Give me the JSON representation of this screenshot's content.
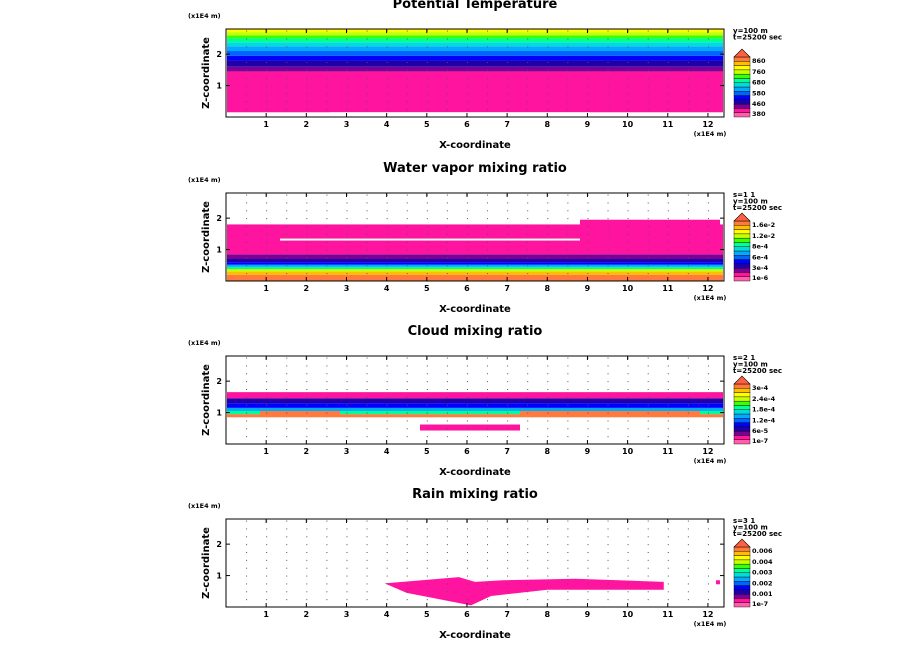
{
  "chart_data": [
    {
      "type": "heatmap",
      "title": "Potential Temperature",
      "xlabel": "X-coordinate",
      "ylabel": "Z-coordinate",
      "x_unit": "(x1E4 m)",
      "z_unit": "(x1E4 m)",
      "xlim": [
        0,
        12.4
      ],
      "ylim": [
        0,
        2.8
      ],
      "x_ticks": [
        "1",
        "2",
        "3",
        "4",
        "5",
        "6",
        "7",
        "8",
        "9",
        "10",
        "11",
        "12"
      ],
      "y_ticks": [
        "1",
        "2"
      ],
      "info": [
        "y=100 m",
        "t=25200 sec"
      ],
      "colorbar_labels": [
        "860",
        "760",
        "680",
        "580",
        "460",
        "380"
      ],
      "colors": [
        "#ff5fa8",
        "#ff14a0",
        "#7c0096",
        "#1e00aa",
        "#0000ff",
        "#0064ff",
        "#00aaff",
        "#00dcdc",
        "#00ff96",
        "#3cff00",
        "#c8ff00",
        "#ffff00",
        "#ffbe00",
        "#ff7a3c"
      ],
      "bands": [
        {
          "z0": 0.15,
          "z1": 1.45,
          "c": 1
        },
        {
          "z0": 1.45,
          "z1": 1.6,
          "c": 2
        },
        {
          "z0": 1.6,
          "z1": 1.8,
          "c": 3
        },
        {
          "z0": 1.8,
          "z1": 1.95,
          "c": 4
        },
        {
          "z0": 1.95,
          "z1": 2.1,
          "c": 5
        },
        {
          "z0": 2.1,
          "z1": 2.25,
          "c": 6
        },
        {
          "z0": 2.25,
          "z1": 2.38,
          "c": 7
        },
        {
          "z0": 2.38,
          "z1": 2.5,
          "c": 8
        },
        {
          "z0": 2.5,
          "z1": 2.6,
          "c": 9
        },
        {
          "z0": 2.6,
          "z1": 2.7,
          "c": 10
        },
        {
          "z0": 2.7,
          "z1": 2.8,
          "c": 11
        }
      ]
    },
    {
      "type": "heatmap",
      "title": "Water vapor mixing ratio",
      "xlabel": "X-coordinate",
      "ylabel": "Z-coordinate",
      "x_unit": "(x1E4 m)",
      "z_unit": "(x1E4 m)",
      "xlim": [
        0,
        12.4
      ],
      "ylim": [
        0,
        2.8
      ],
      "x_ticks": [
        "1",
        "2",
        "3",
        "4",
        "5",
        "6",
        "7",
        "8",
        "9",
        "10",
        "11",
        "12"
      ],
      "y_ticks": [
        "1",
        "2"
      ],
      "info": [
        "s=1 1",
        "y=100 m",
        "t=25200 sec"
      ],
      "colorbar_labels": [
        "1.6e-2",
        "1.2e-2",
        "8e-4",
        "6e-4",
        "3e-4",
        "1e-6"
      ],
      "colors": [
        "#ff5fa8",
        "#ff14a0",
        "#7c0096",
        "#1e00aa",
        "#0000ff",
        "#0064ff",
        "#00aaff",
        "#00dcdc",
        "#00ff96",
        "#3cff00",
        "#c8ff00",
        "#ffff00",
        "#ffbe00",
        "#ff7a3c"
      ],
      "bands": [
        {
          "z0": 0.0,
          "z1": 0.2,
          "c": 13
        },
        {
          "z0": 0.2,
          "z1": 0.3,
          "c": 12
        },
        {
          "z0": 0.3,
          "z1": 0.38,
          "c": 10
        },
        {
          "z0": 0.38,
          "z1": 0.45,
          "c": 8
        },
        {
          "z0": 0.45,
          "z1": 0.52,
          "c": 6
        },
        {
          "z0": 0.52,
          "z1": 0.6,
          "c": 4
        },
        {
          "z0": 0.6,
          "z1": 0.7,
          "c": 3
        },
        {
          "z0": 0.7,
          "z1": 0.85,
          "c": 2
        },
        {
          "z0": 0.85,
          "z1": 1.8,
          "c": 1
        }
      ]
    },
    {
      "type": "heatmap",
      "title": "Cloud mixing ratio",
      "xlabel": "X-coordinate",
      "ylabel": "Z-coordinate",
      "x_unit": "(x1E4 m)",
      "z_unit": "(x1E4 m)",
      "xlim": [
        0,
        12.4
      ],
      "ylim": [
        0,
        2.8
      ],
      "x_ticks": [
        "1",
        "2",
        "3",
        "4",
        "5",
        "6",
        "7",
        "8",
        "9",
        "10",
        "11",
        "12"
      ],
      "y_ticks": [
        "1",
        "2"
      ],
      "info": [
        "s=2 1",
        "y=100 m",
        "t=25200 sec"
      ],
      "colorbar_labels": [
        "3e-4",
        "2.4e-4",
        "1.8e-4",
        "1.2e-4",
        "6e-5",
        "1e-7"
      ],
      "colors": [
        "#ff5fa8",
        "#ff14a0",
        "#7c0096",
        "#1e00aa",
        "#0000ff",
        "#0064ff",
        "#00aaff",
        "#00dcdc",
        "#00ff96",
        "#3cff00",
        "#c8ff00",
        "#ffff00",
        "#ffbe00",
        "#ff7a3c"
      ],
      "bands": [
        {
          "z0": 0.85,
          "z1": 0.95,
          "c": 13
        },
        {
          "z0": 0.95,
          "z1": 1.05,
          "c": 8
        },
        {
          "z0": 1.05,
          "z1": 1.15,
          "c": 6
        },
        {
          "z0": 1.15,
          "z1": 1.3,
          "c": 4
        },
        {
          "z0": 1.3,
          "z1": 1.45,
          "c": 3
        },
        {
          "z0": 1.45,
          "z1": 1.65,
          "c": 1
        }
      ]
    },
    {
      "type": "heatmap",
      "title": "Rain mixing ratio",
      "xlabel": "X-coordinate",
      "ylabel": "Z-coordinate",
      "x_unit": "(x1E4 m)",
      "z_unit": "(x1E4 m)",
      "xlim": [
        0,
        12.4
      ],
      "ylim": [
        0,
        2.8
      ],
      "x_ticks": [
        "1",
        "2",
        "3",
        "4",
        "5",
        "6",
        "7",
        "8",
        "9",
        "10",
        "11",
        "12"
      ],
      "y_ticks": [
        "1",
        "2"
      ],
      "info": [
        "s=3 1",
        "y=100 m",
        "t=25200 sec"
      ],
      "colorbar_labels": [
        "0.006",
        "0.004",
        "0.003",
        "0.002",
        "0.001",
        "1e-7"
      ],
      "colors": [
        "#ff5fa8",
        "#ff14a0",
        "#7c0096",
        "#1e00aa",
        "#0000ff",
        "#0064ff",
        "#00aaff",
        "#00dcdc",
        "#00ff96",
        "#3cff00",
        "#c8ff00",
        "#ffff00",
        "#ffbe00",
        "#ff7a3c"
      ],
      "bands": [
        {
          "z0": 0.3,
          "z1": 0.8,
          "c": 1
        }
      ]
    }
  ]
}
